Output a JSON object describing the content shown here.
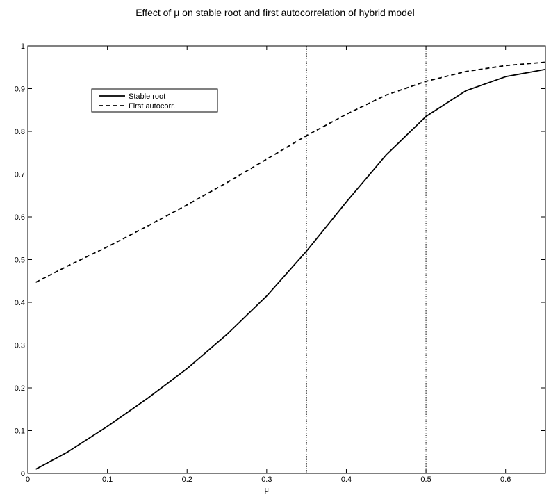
{
  "chart_data": {
    "type": "line",
    "title": "Effect of μ on stable root and first autocorrelation of hybrid model",
    "xlabel": "μ",
    "ylabel": "",
    "xlim": [
      0,
      0.65
    ],
    "ylim": [
      0,
      1
    ],
    "xticks": [
      0,
      0.1,
      0.2,
      0.3,
      0.4,
      0.5,
      0.6
    ],
    "xtick_labels": [
      "0",
      "0.1",
      "0.2",
      "0.3",
      "0.4",
      "0.5",
      "0.6"
    ],
    "yticks": [
      0,
      0.1,
      0.2,
      0.3,
      0.4,
      0.5,
      0.6,
      0.7,
      0.8,
      0.9,
      1
    ],
    "ytick_labels": [
      "0",
      "0.1",
      "0.2",
      "0.3",
      "0.4",
      "0.5",
      "0.6",
      "0.7",
      "0.8",
      "0.9",
      "1"
    ],
    "grid": false,
    "legend_position": "top-left",
    "vlines": [
      0.35,
      0.5
    ],
    "series": [
      {
        "name": "Stable root",
        "style": "solid",
        "color": "#000000",
        "x": [
          0.01,
          0.05,
          0.1,
          0.15,
          0.2,
          0.25,
          0.3,
          0.35,
          0.4,
          0.45,
          0.5,
          0.55,
          0.6,
          0.65
        ],
        "y": [
          0.01,
          0.05,
          0.11,
          0.175,
          0.245,
          0.325,
          0.415,
          0.52,
          0.635,
          0.745,
          0.835,
          0.895,
          0.928,
          0.945
        ]
      },
      {
        "name": "First autocorr.",
        "style": "dashed",
        "color": "#000000",
        "x": [
          0.01,
          0.05,
          0.1,
          0.15,
          0.2,
          0.25,
          0.3,
          0.35,
          0.4,
          0.45,
          0.5,
          0.55,
          0.6,
          0.65
        ],
        "y": [
          0.447,
          0.485,
          0.53,
          0.578,
          0.628,
          0.68,
          0.735,
          0.79,
          0.84,
          0.885,
          0.917,
          0.94,
          0.954,
          0.962
        ]
      }
    ]
  }
}
